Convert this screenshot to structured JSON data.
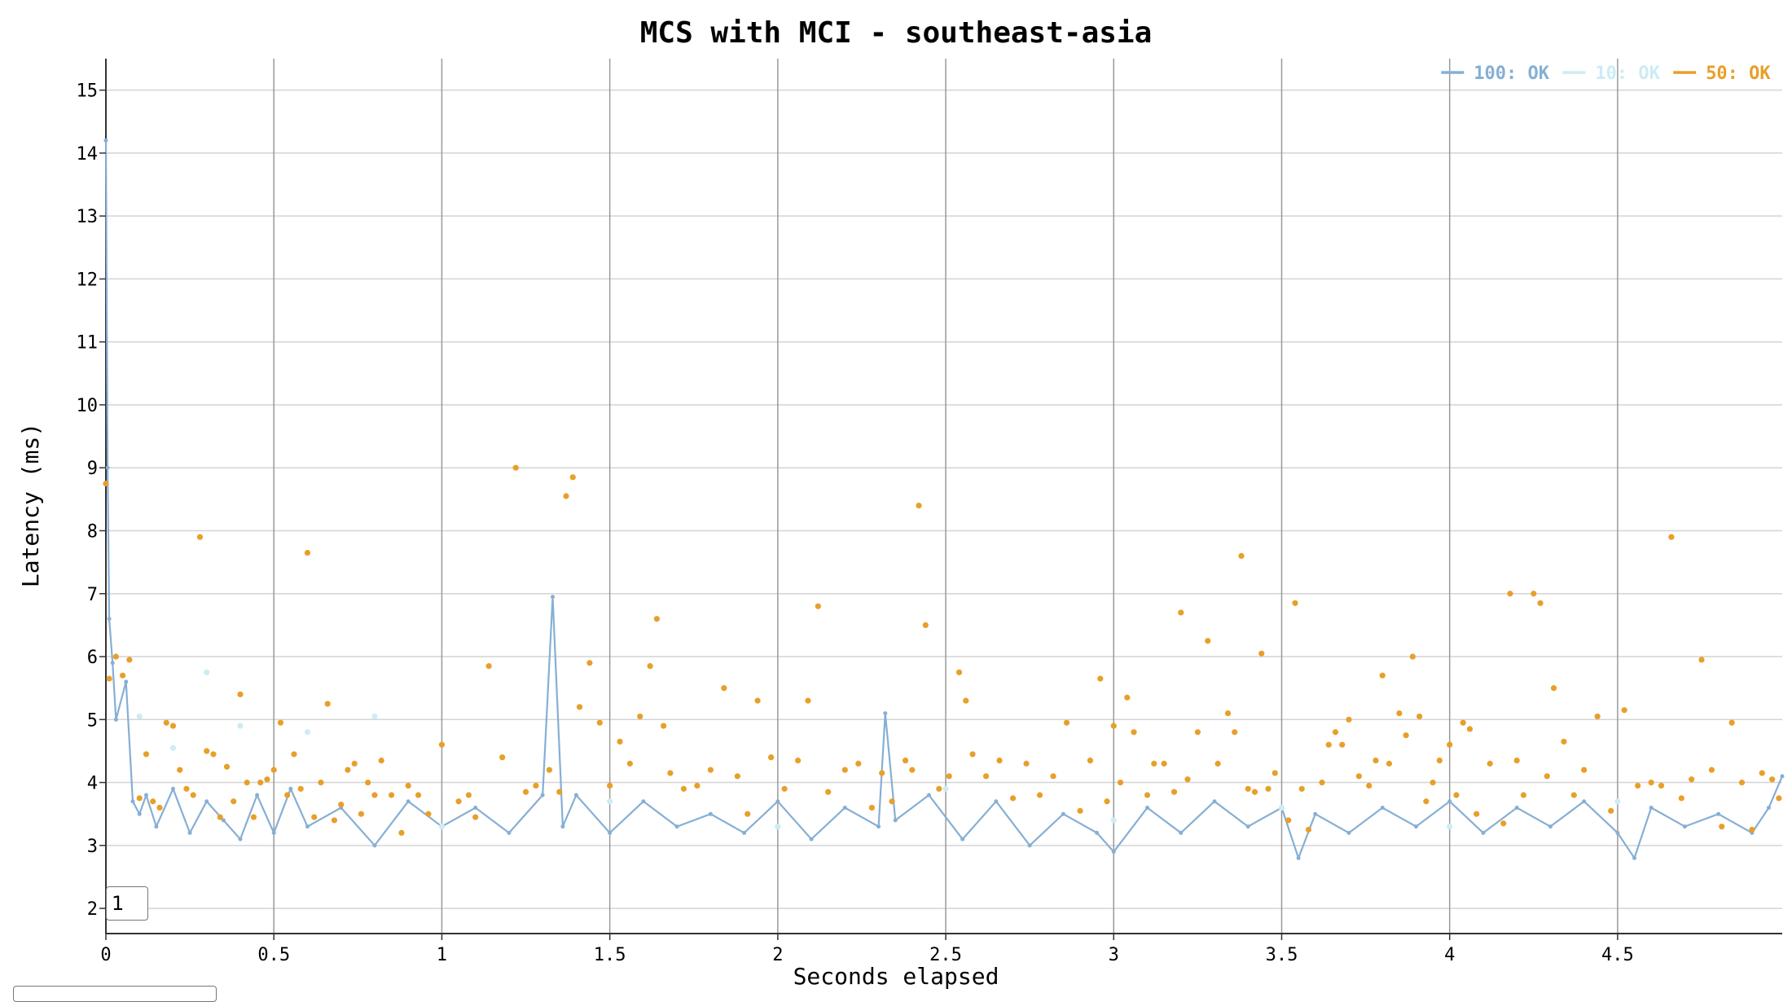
{
  "chart_data": {
    "type": "scatter",
    "title": "MCS with MCI - southeast-asia",
    "xlabel": "Seconds elapsed",
    "ylabel": "Latency (ms)",
    "xlim": [
      0,
      4.99
    ],
    "ylim": [
      1.6,
      15.5
    ],
    "xticks": [
      0,
      0.5,
      1,
      1.5,
      2,
      2.5,
      3,
      3.5,
      4,
      4.5
    ],
    "xtick_labels": [
      "0",
      "0.5",
      "1",
      "1.5",
      "2",
      "2.5",
      "3",
      "3.5",
      "4",
      "4.5"
    ],
    "yticks": [
      2,
      3,
      4,
      5,
      6,
      7,
      8,
      9,
      10,
      11,
      12,
      13,
      14,
      15
    ],
    "ytick_labels": [
      "2",
      "3",
      "4",
      "5",
      "6",
      "7",
      "8",
      "9",
      "10",
      "11",
      "12",
      "13",
      "14",
      "15"
    ],
    "grid": true,
    "legend_position": "top-right",
    "series": [
      {
        "name": "100: OK",
        "color": "#86afd4",
        "style": "line",
        "points": [
          [
            0.0,
            14.2
          ],
          [
            0.005,
            9.0
          ],
          [
            0.01,
            6.6
          ],
          [
            0.02,
            5.9
          ],
          [
            0.03,
            5.0
          ],
          [
            0.06,
            5.6
          ],
          [
            0.08,
            3.7
          ],
          [
            0.1,
            3.5
          ],
          [
            0.12,
            3.8
          ],
          [
            0.15,
            3.3
          ],
          [
            0.2,
            3.9
          ],
          [
            0.25,
            3.2
          ],
          [
            0.3,
            3.7
          ],
          [
            0.35,
            3.4
          ],
          [
            0.4,
            3.1
          ],
          [
            0.45,
            3.8
          ],
          [
            0.5,
            3.2
          ],
          [
            0.55,
            3.9
          ],
          [
            0.6,
            3.3
          ],
          [
            0.7,
            3.6
          ],
          [
            0.8,
            3.0
          ],
          [
            0.9,
            3.7
          ],
          [
            1.0,
            3.3
          ],
          [
            1.1,
            3.6
          ],
          [
            1.2,
            3.2
          ],
          [
            1.3,
            3.8
          ],
          [
            1.33,
            6.95
          ],
          [
            1.36,
            3.3
          ],
          [
            1.4,
            3.8
          ],
          [
            1.5,
            3.2
          ],
          [
            1.6,
            3.7
          ],
          [
            1.7,
            3.3
          ],
          [
            1.8,
            3.5
          ],
          [
            1.9,
            3.2
          ],
          [
            2.0,
            3.7
          ],
          [
            2.1,
            3.1
          ],
          [
            2.2,
            3.6
          ],
          [
            2.3,
            3.3
          ],
          [
            2.32,
            5.1
          ],
          [
            2.35,
            3.4
          ],
          [
            2.45,
            3.8
          ],
          [
            2.55,
            3.1
          ],
          [
            2.65,
            3.7
          ],
          [
            2.75,
            3.0
          ],
          [
            2.85,
            3.5
          ],
          [
            2.95,
            3.2
          ],
          [
            3.0,
            2.9
          ],
          [
            3.1,
            3.6
          ],
          [
            3.2,
            3.2
          ],
          [
            3.3,
            3.7
          ],
          [
            3.4,
            3.3
          ],
          [
            3.5,
            3.6
          ],
          [
            3.55,
            2.8
          ],
          [
            3.6,
            3.5
          ],
          [
            3.7,
            3.2
          ],
          [
            3.8,
            3.6
          ],
          [
            3.9,
            3.3
          ],
          [
            4.0,
            3.7
          ],
          [
            4.1,
            3.2
          ],
          [
            4.2,
            3.6
          ],
          [
            4.3,
            3.3
          ],
          [
            4.4,
            3.7
          ],
          [
            4.5,
            3.2
          ],
          [
            4.55,
            2.8
          ],
          [
            4.6,
            3.6
          ],
          [
            4.7,
            3.3
          ],
          [
            4.8,
            3.5
          ],
          [
            4.9,
            3.2
          ],
          [
            4.95,
            3.6
          ],
          [
            4.99,
            4.1
          ]
        ]
      },
      {
        "name": "10: OK",
        "color": "#cdecf4",
        "style": "points",
        "points": [
          [
            0.1,
            5.05
          ],
          [
            0.2,
            4.55
          ],
          [
            0.3,
            5.75
          ],
          [
            0.4,
            4.9
          ],
          [
            0.6,
            4.8
          ],
          [
            0.8,
            5.05
          ],
          [
            1.0,
            3.3
          ],
          [
            1.5,
            3.7
          ],
          [
            2.0,
            3.3
          ],
          [
            2.5,
            3.9
          ],
          [
            3.0,
            3.4
          ],
          [
            3.5,
            3.6
          ],
          [
            4.0,
            3.3
          ],
          [
            4.5,
            3.7
          ]
        ]
      },
      {
        "name": "50: OK",
        "color": "#e89f2a",
        "style": "points",
        "points": [
          [
            0.0,
            8.75
          ],
          [
            0.01,
            5.65
          ],
          [
            0.03,
            6.0
          ],
          [
            0.05,
            5.7
          ],
          [
            0.07,
            5.95
          ],
          [
            0.1,
            3.75
          ],
          [
            0.12,
            4.45
          ],
          [
            0.14,
            3.7
          ],
          [
            0.16,
            3.6
          ],
          [
            0.18,
            4.95
          ],
          [
            0.2,
            4.9
          ],
          [
            0.22,
            4.2
          ],
          [
            0.24,
            3.9
          ],
          [
            0.26,
            3.8
          ],
          [
            0.28,
            7.9
          ],
          [
            0.3,
            4.5
          ],
          [
            0.32,
            4.45
          ],
          [
            0.34,
            3.45
          ],
          [
            0.36,
            4.25
          ],
          [
            0.38,
            3.7
          ],
          [
            0.4,
            5.4
          ],
          [
            0.42,
            4.0
          ],
          [
            0.44,
            3.45
          ],
          [
            0.46,
            4.0
          ],
          [
            0.48,
            4.05
          ],
          [
            0.5,
            4.2
          ],
          [
            0.52,
            4.95
          ],
          [
            0.54,
            3.8
          ],
          [
            0.56,
            4.45
          ],
          [
            0.58,
            3.9
          ],
          [
            0.6,
            7.65
          ],
          [
            0.62,
            3.45
          ],
          [
            0.64,
            4.0
          ],
          [
            0.66,
            5.25
          ],
          [
            0.68,
            3.4
          ],
          [
            0.7,
            3.65
          ],
          [
            0.72,
            4.2
          ],
          [
            0.74,
            4.3
          ],
          [
            0.76,
            3.5
          ],
          [
            0.78,
            4.0
          ],
          [
            0.8,
            3.8
          ],
          [
            0.82,
            4.35
          ],
          [
            0.85,
            3.8
          ],
          [
            0.88,
            3.2
          ],
          [
            0.9,
            3.95
          ],
          [
            0.93,
            3.8
          ],
          [
            0.96,
            3.5
          ],
          [
            1.0,
            4.6
          ],
          [
            1.05,
            3.7
          ],
          [
            1.08,
            3.8
          ],
          [
            1.1,
            3.45
          ],
          [
            1.14,
            5.85
          ],
          [
            1.18,
            4.4
          ],
          [
            1.22,
            9.0
          ],
          [
            1.25,
            3.85
          ],
          [
            1.28,
            3.95
          ],
          [
            1.32,
            4.2
          ],
          [
            1.35,
            3.85
          ],
          [
            1.37,
            8.55
          ],
          [
            1.39,
            8.85
          ],
          [
            1.41,
            5.2
          ],
          [
            1.44,
            5.9
          ],
          [
            1.47,
            4.95
          ],
          [
            1.5,
            3.95
          ],
          [
            1.53,
            4.65
          ],
          [
            1.56,
            4.3
          ],
          [
            1.59,
            5.05
          ],
          [
            1.62,
            5.85
          ],
          [
            1.64,
            6.6
          ],
          [
            1.66,
            4.9
          ],
          [
            1.68,
            4.15
          ],
          [
            1.72,
            3.9
          ],
          [
            1.76,
            3.95
          ],
          [
            1.8,
            4.2
          ],
          [
            1.84,
            5.5
          ],
          [
            1.88,
            4.1
          ],
          [
            1.91,
            3.5
          ],
          [
            1.94,
            5.3
          ],
          [
            1.98,
            4.4
          ],
          [
            2.02,
            3.9
          ],
          [
            2.06,
            4.35
          ],
          [
            2.09,
            5.3
          ],
          [
            2.12,
            6.8
          ],
          [
            2.15,
            3.85
          ],
          [
            2.2,
            4.2
          ],
          [
            2.24,
            4.3
          ],
          [
            2.28,
            3.6
          ],
          [
            2.31,
            4.15
          ],
          [
            2.34,
            3.7
          ],
          [
            2.38,
            4.35
          ],
          [
            2.4,
            4.2
          ],
          [
            2.42,
            8.4
          ],
          [
            2.44,
            6.5
          ],
          [
            2.48,
            3.9
          ],
          [
            2.51,
            4.1
          ],
          [
            2.54,
            5.75
          ],
          [
            2.56,
            5.3
          ],
          [
            2.58,
            4.45
          ],
          [
            2.62,
            4.1
          ],
          [
            2.66,
            4.35
          ],
          [
            2.7,
            3.75
          ],
          [
            2.74,
            4.3
          ],
          [
            2.78,
            3.8
          ],
          [
            2.82,
            4.1
          ],
          [
            2.86,
            4.95
          ],
          [
            2.9,
            3.55
          ],
          [
            2.93,
            4.35
          ],
          [
            2.96,
            5.65
          ],
          [
            2.98,
            3.7
          ],
          [
            3.0,
            4.9
          ],
          [
            3.02,
            4.0
          ],
          [
            3.04,
            5.35
          ],
          [
            3.06,
            4.8
          ],
          [
            3.1,
            3.8
          ],
          [
            3.12,
            4.3
          ],
          [
            3.15,
            4.3
          ],
          [
            3.18,
            3.85
          ],
          [
            3.2,
            6.7
          ],
          [
            3.22,
            4.05
          ],
          [
            3.25,
            4.8
          ],
          [
            3.28,
            6.25
          ],
          [
            3.31,
            4.3
          ],
          [
            3.34,
            5.1
          ],
          [
            3.36,
            4.8
          ],
          [
            3.38,
            7.6
          ],
          [
            3.4,
            3.9
          ],
          [
            3.42,
            3.85
          ],
          [
            3.44,
            6.05
          ],
          [
            3.46,
            3.9
          ],
          [
            3.48,
            4.15
          ],
          [
            3.52,
            3.4
          ],
          [
            3.54,
            6.85
          ],
          [
            3.56,
            3.9
          ],
          [
            3.58,
            3.25
          ],
          [
            3.62,
            4.0
          ],
          [
            3.64,
            4.6
          ],
          [
            3.66,
            4.8
          ],
          [
            3.68,
            4.6
          ],
          [
            3.7,
            5.0
          ],
          [
            3.73,
            4.1
          ],
          [
            3.76,
            3.95
          ],
          [
            3.78,
            4.35
          ],
          [
            3.8,
            5.7
          ],
          [
            3.82,
            4.3
          ],
          [
            3.85,
            5.1
          ],
          [
            3.87,
            4.75
          ],
          [
            3.89,
            6.0
          ],
          [
            3.91,
            5.05
          ],
          [
            3.93,
            3.7
          ],
          [
            3.95,
            4.0
          ],
          [
            3.97,
            4.35
          ],
          [
            4.0,
            4.6
          ],
          [
            4.02,
            3.8
          ],
          [
            4.04,
            4.95
          ],
          [
            4.06,
            4.85
          ],
          [
            4.08,
            3.5
          ],
          [
            4.12,
            4.3
          ],
          [
            4.16,
            3.35
          ],
          [
            4.18,
            7.0
          ],
          [
            4.2,
            4.35
          ],
          [
            4.22,
            3.8
          ],
          [
            4.25,
            7.0
          ],
          [
            4.27,
            6.85
          ],
          [
            4.29,
            4.1
          ],
          [
            4.31,
            5.5
          ],
          [
            4.34,
            4.65
          ],
          [
            4.37,
            3.8
          ],
          [
            4.4,
            4.2
          ],
          [
            4.44,
            5.05
          ],
          [
            4.48,
            3.55
          ],
          [
            4.52,
            5.15
          ],
          [
            4.56,
            3.95
          ],
          [
            4.6,
            4.0
          ],
          [
            4.63,
            3.95
          ],
          [
            4.66,
            7.9
          ],
          [
            4.69,
            3.75
          ],
          [
            4.72,
            4.05
          ],
          [
            4.75,
            5.95
          ],
          [
            4.78,
            4.2
          ],
          [
            4.81,
            3.3
          ],
          [
            4.84,
            4.95
          ],
          [
            4.87,
            4.0
          ],
          [
            4.9,
            3.25
          ],
          [
            4.93,
            4.15
          ],
          [
            4.96,
            4.05
          ],
          [
            4.98,
            3.75
          ]
        ]
      }
    ]
  },
  "controls": {
    "rolling_period": "1"
  }
}
